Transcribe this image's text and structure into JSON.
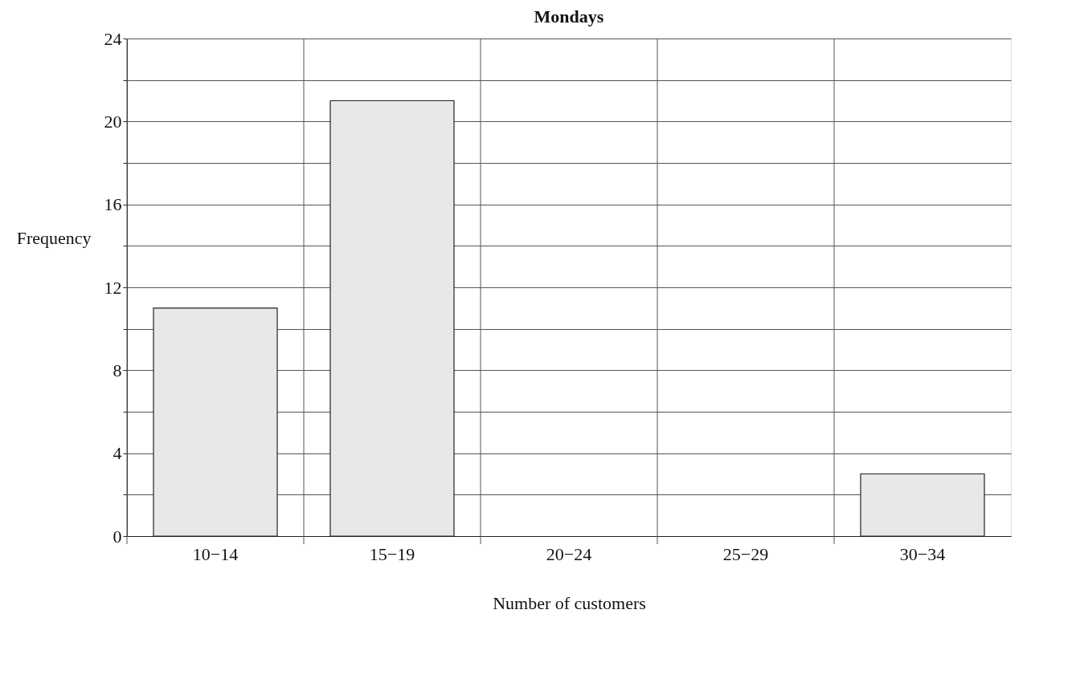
{
  "chart_data": {
    "type": "bar",
    "title": "Mondays",
    "xlabel": "Number of customers",
    "ylabel": "Frequency",
    "categories": [
      "10−14",
      "15−19",
      "20−24",
      "25−29",
      "30−34"
    ],
    "values": [
      11,
      21,
      0,
      0,
      3
    ],
    "color": "#e8e8e8",
    "ylim": [
      0,
      24
    ],
    "yticks": [
      0,
      {
        "value": 2,
        "label": null
      },
      4,
      {
        "value": 6,
        "label": null
      },
      8,
      {
        "value": 10,
        "label": null
      },
      12,
      {
        "value": 14,
        "label": null
      },
      16,
      {
        "value": 18,
        "label": null
      },
      20,
      {
        "value": 22,
        "label": null
      },
      24
    ],
    "grid": true
  }
}
